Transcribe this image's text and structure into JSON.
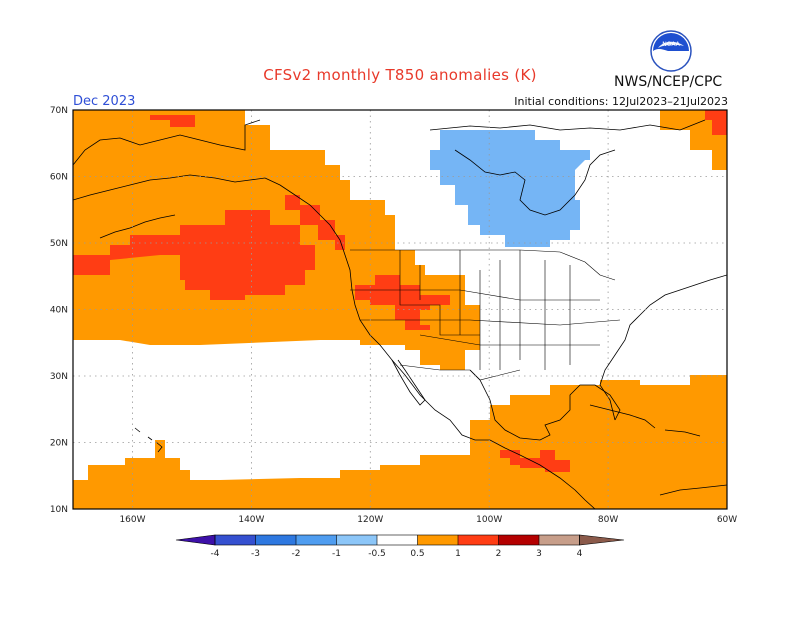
{
  "title": "CFSv2 monthly T850 anomalies (K)",
  "month": "Dec 2023",
  "agency": "NWS/NCEP/CPC",
  "initial_conditions": "Initial conditions: 12Jul2023–21Jul2023",
  "logo_text": "NOAA",
  "icons": {
    "logo": "noaa-logo-icon"
  },
  "map": {
    "lat_labels": [
      "70N",
      "60N",
      "50N",
      "40N",
      "30N",
      "20N",
      "10N"
    ],
    "lon_labels": [
      "160W",
      "140W",
      "120W",
      "100W",
      "80W",
      "60W"
    ],
    "lat_range": [
      10,
      70
    ],
    "lon_range": [
      -170,
      -60
    ],
    "anomaly_regions": [
      {
        "region": "North Pacific / western North America",
        "class": "0.5 to 1",
        "color": "#ff9900"
      },
      {
        "region": "Central North Pacific",
        "class": "1 to 2",
        "color": "#ff3d14"
      },
      {
        "region": "Intermountain West",
        "class": "1 to 2",
        "color": "#ff3d14"
      },
      {
        "region": "Southern Mexico / Central America",
        "class": "1 to 2",
        "color": "#ff3d14"
      },
      {
        "region": "Hudson Bay",
        "class": "-1 to -0.5",
        "color": "#75b5f5"
      },
      {
        "region": "Gulf of Mexico / Caribbean / subtropical Pacific",
        "class": "0.5 to 1",
        "color": "#ff9900"
      }
    ]
  },
  "colorbar": {
    "labels": [
      "-4",
      "-3",
      "-2",
      "-1",
      "-0.5",
      "0.5",
      "1",
      "2",
      "3",
      "4"
    ],
    "colors": [
      "#3d10a8",
      "#3550d0",
      "#2e78e0",
      "#4f9df0",
      "#8cc6f8",
      "#ffffff",
      "#ff9900",
      "#ff3d14",
      "#b40000",
      "#c79e8a",
      "#8b5a4a"
    ]
  }
}
